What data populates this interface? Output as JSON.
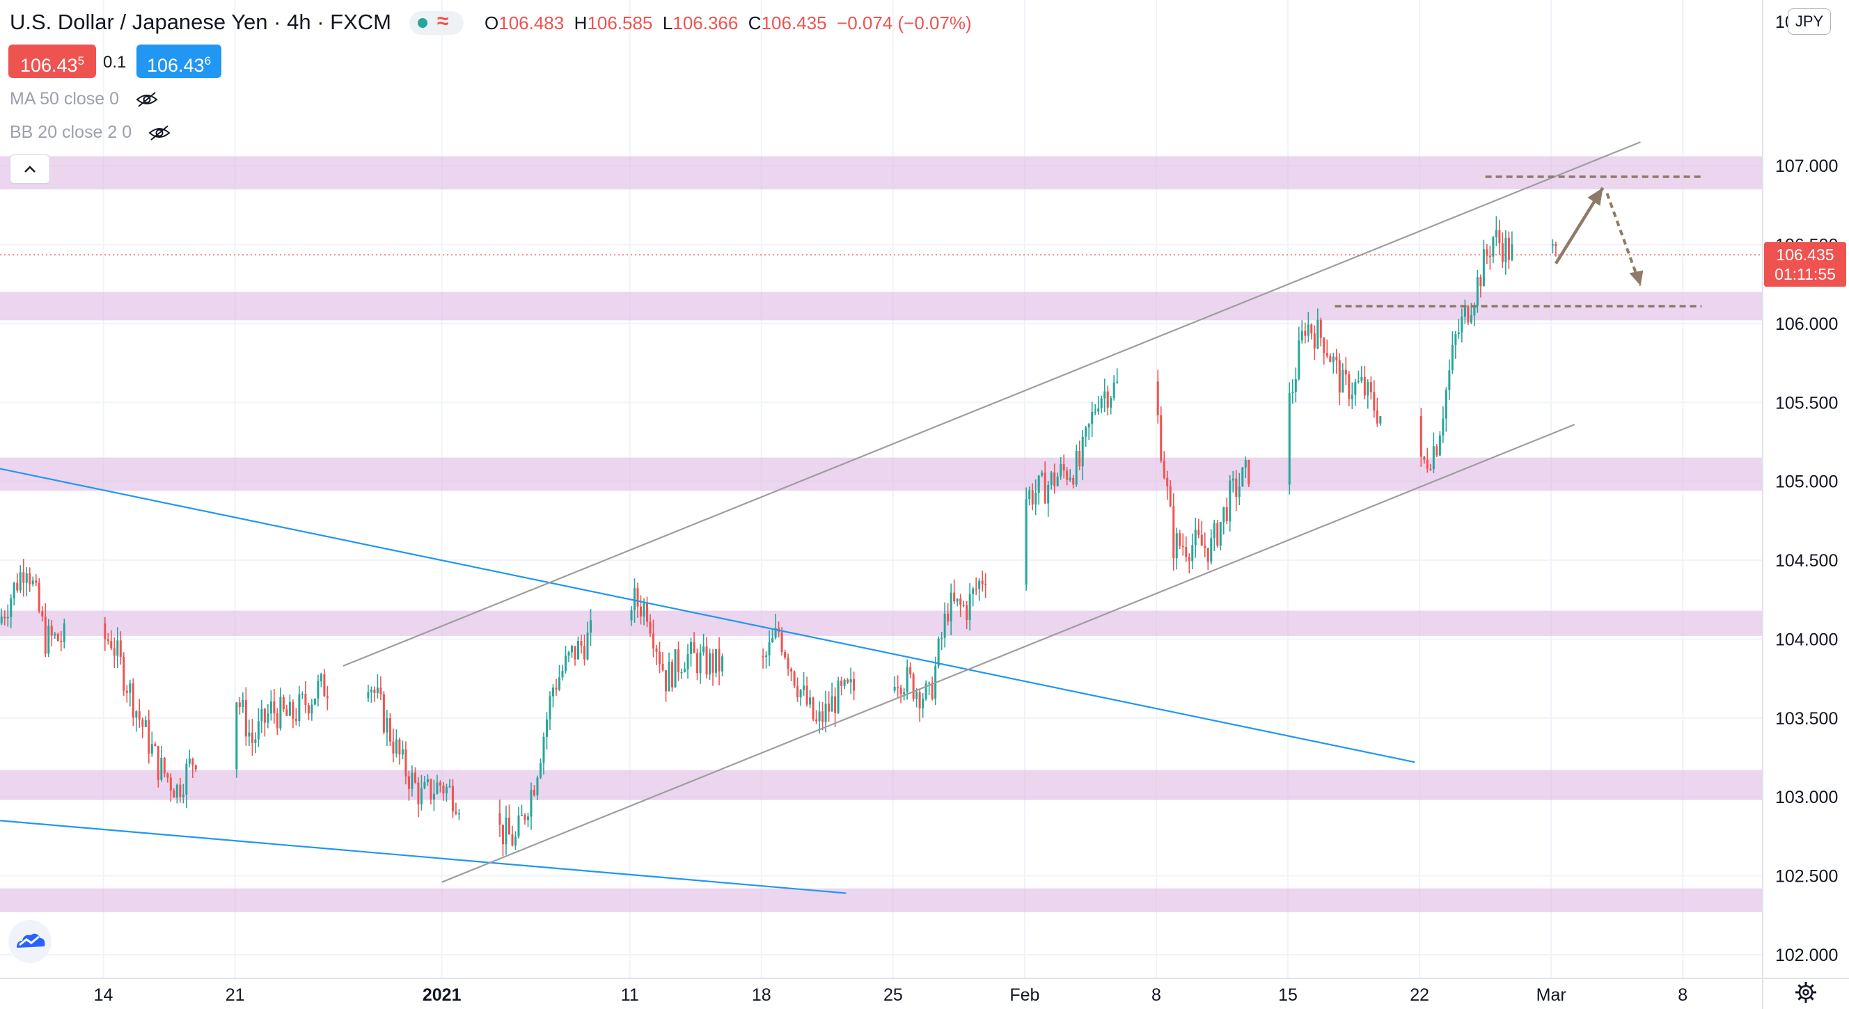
{
  "header": {
    "symbol": "U.S. Dollar / Japanese Yen",
    "interval": "4h",
    "source": "FXCM",
    "status_colors": {
      "dot": "#26a69a",
      "wave": "#ef5350"
    },
    "ohlc": {
      "o_label": "O",
      "o": "106.483",
      "h_label": "H",
      "h": "106.585",
      "l_label": "L",
      "l": "106.366",
      "c_label": "C",
      "c": "106.435",
      "change": "−0.074 (−0.07%)"
    }
  },
  "trade": {
    "sell": "106.43",
    "sell_sup": "5",
    "spread": "0.1",
    "buy": "106.43",
    "buy_sup": "6"
  },
  "indicators": [
    {
      "label": "MA 50 close 0"
    },
    {
      "label": "BB 20 close 2 0"
    }
  ],
  "price_scale": {
    "currency": "JPY",
    "current_price": "106.435",
    "countdown": "01:11:55",
    "partial_top_label": "10",
    "partial_hidden_label": "106.500"
  },
  "colors": {
    "up": "#26a69a",
    "down": "#ef5350",
    "zone": "#e1bee7",
    "trendline": "#2196f3",
    "channel": "#9e9e9e",
    "projection": "#8d7b68",
    "buy": "#2196f3",
    "sell": "#ef5350"
  },
  "chart_data": {
    "type": "candlestick",
    "title": "",
    "xlabel": "",
    "ylabel": "",
    "ylim": [
      101.85,
      108.05
    ],
    "y_ticks": [
      "102.000",
      "102.500",
      "103.000",
      "103.500",
      "104.000",
      "104.500",
      "105.000",
      "105.500",
      "106.000",
      "106.500",
      "107.000"
    ],
    "x_ticks": [
      {
        "label": "14",
        "date": "2020-12-14",
        "bold": false
      },
      {
        "label": "21",
        "date": "2020-12-21",
        "bold": false
      },
      {
        "label": "2021",
        "date": "2021-01-01",
        "bold": true
      },
      {
        "label": "11",
        "date": "2021-01-11",
        "bold": false
      },
      {
        "label": "18",
        "date": "2021-01-18",
        "bold": false
      },
      {
        "label": "25",
        "date": "2021-01-25",
        "bold": false
      },
      {
        "label": "Feb",
        "date": "2021-02-01",
        "bold": false
      },
      {
        "label": "8",
        "date": "2021-02-08",
        "bold": false
      },
      {
        "label": "15",
        "date": "2021-02-15",
        "bold": false
      },
      {
        "label": "22",
        "date": "2021-02-22",
        "bold": false
      },
      {
        "label": "Mar",
        "date": "2021-03-01",
        "bold": false
      },
      {
        "label": "8",
        "date": "2021-03-08",
        "bold": false
      }
    ],
    "x_range": [
      "2020-12-08 12:00",
      "2021-03-12 06:00"
    ],
    "zones": [
      [
        106.85,
        107.06
      ],
      [
        106.02,
        106.2
      ],
      [
        104.94,
        105.15
      ],
      [
        104.02,
        104.18
      ],
      [
        102.98,
        103.17
      ],
      [
        102.27,
        102.42
      ]
    ],
    "trendlines": [
      {
        "from": [
          "2020-12-08 12:00",
          105.08
        ],
        "to": [
          "2021-02-21 18:00",
          103.22
        ],
        "style": "trend"
      },
      {
        "from": [
          "2020-12-08 12:00",
          102.85
        ],
        "to": [
          "2021-01-22 12:00",
          102.39
        ],
        "style": "trend"
      },
      {
        "from": [
          "2021-01-01 00:00",
          102.46
        ],
        "to": [
          "2021-03-02 06:00",
          105.36
        ],
        "style": "channel"
      },
      {
        "from": [
          "2020-12-26 18:00",
          103.83
        ],
        "to": [
          "2021-03-05 18:00",
          107.15
        ],
        "style": "channel"
      }
    ],
    "levels": [
      {
        "from": "2021-02-25 12:00",
        "to": "2021-03-09 00:00",
        "price": 106.93
      },
      {
        "from": "2021-02-17 12:00",
        "to": "2021-03-09 00:00",
        "price": 106.11
      }
    ],
    "projection": [
      [
        "2021-03-01 06:00",
        106.38
      ],
      [
        "2021-03-03 18:00",
        106.86
      ],
      [
        "2021-03-05 18:00",
        106.24
      ]
    ],
    "candles_anchor": "2020-12-08 12:00",
    "candles_step_hours": 4,
    "anchors": [
      [
        "2020-12-08 12:00",
        104.1
      ],
      [
        "2020-12-10 00:00",
        104.5
      ],
      [
        "2020-12-11 00:00",
        104.0
      ],
      [
        "2020-12-14 12:00",
        104.0
      ],
      [
        "2020-12-16 00:00",
        103.5
      ],
      [
        "2020-12-17 00:00",
        103.2
      ],
      [
        "2020-12-18 00:00",
        103.05
      ],
      [
        "2020-12-21 00:00",
        103.7
      ],
      [
        "2020-12-22 00:00",
        103.35
      ],
      [
        "2020-12-23 00:00",
        103.55
      ],
      [
        "2020-12-24 00:00",
        103.5
      ],
      [
        "2020-12-25 12:00",
        103.68
      ],
      [
        "2020-12-28 00:00",
        103.82
      ],
      [
        "2020-12-29 00:00",
        103.5
      ],
      [
        "2020-12-30 00:00",
        103.2
      ],
      [
        "2020-12-31 00:00",
        103.0
      ],
      [
        "2021-01-01 00:00",
        103.08
      ],
      [
        "2021-01-04 00:00",
        102.8
      ],
      [
        "2021-01-05 00:00",
        102.72
      ],
      [
        "2021-01-06 00:00",
        103.1
      ],
      [
        "2021-01-07 00:00",
        103.7
      ],
      [
        "2021-01-08 00:00",
        103.9
      ],
      [
        "2021-01-11 00:00",
        104.25
      ],
      [
        "2021-01-12 00:00",
        104.2
      ],
      [
        "2021-01-13 00:00",
        103.75
      ],
      [
        "2021-01-14 00:00",
        103.9
      ],
      [
        "2021-01-15 00:00",
        103.85
      ],
      [
        "2021-01-18 00:00",
        103.8
      ],
      [
        "2021-01-19 00:00",
        104.05
      ],
      [
        "2021-01-20 00:00",
        103.72
      ],
      [
        "2021-01-21 00:00",
        103.45
      ],
      [
        "2021-01-22 00:00",
        103.62
      ],
      [
        "2021-01-25 00:00",
        103.8
      ],
      [
        "2021-01-26 00:00",
        103.72
      ],
      [
        "2021-01-27 00:00",
        103.62
      ],
      [
        "2021-01-28 00:00",
        104.2
      ],
      [
        "2021-01-29 00:00",
        104.2
      ],
      [
        "2021-02-01 00:00",
        104.9
      ],
      [
        "2021-02-02 00:00",
        104.95
      ],
      [
        "2021-02-03 00:00",
        105.05
      ],
      [
        "2021-02-04 00:00",
        105.1
      ],
      [
        "2021-02-05 00:00",
        105.55
      ],
      [
        "2021-02-06 00:00",
        105.6
      ],
      [
        "2021-02-08 00:00",
        105.55
      ],
      [
        "2021-02-09 00:00",
        104.6
      ],
      [
        "2021-02-10 00:00",
        104.6
      ],
      [
        "2021-02-11 00:00",
        104.58
      ],
      [
        "2021-02-12 00:00",
        104.9
      ],
      [
        "2021-02-15 00:00",
        105.4
      ],
      [
        "2021-02-16 00:00",
        106.0
      ],
      [
        "2021-02-17 00:00",
        105.9
      ],
      [
        "2021-02-18 00:00",
        105.6
      ],
      [
        "2021-02-19 00:00",
        105.6
      ],
      [
        "2021-02-22 00:00",
        105.05
      ],
      [
        "2021-02-23 00:00",
        105.25
      ],
      [
        "2021-02-24 00:00",
        105.9
      ],
      [
        "2021-02-25 00:00",
        106.2
      ],
      [
        "2021-02-26 00:00",
        106.55
      ],
      [
        "2021-02-27 00:00",
        106.44
      ],
      [
        "2021-03-01 06:00",
        106.435
      ]
    ]
  }
}
